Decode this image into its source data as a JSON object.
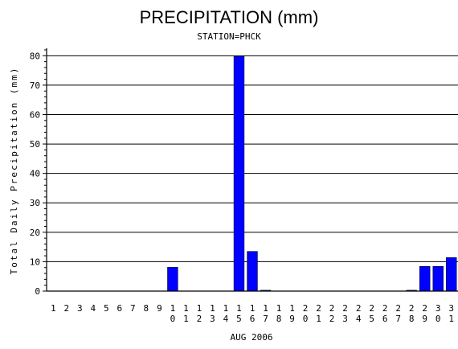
{
  "chart_data": {
    "type": "bar",
    "title": "PRECIPITATION (mm)",
    "subtitle": "STATION=PHCK",
    "xlabel": "AUG 2006",
    "ylabel": "Total Daily Precipitation (mm)",
    "ylim": [
      0,
      82
    ],
    "yticks": [
      0,
      10,
      20,
      30,
      40,
      50,
      60,
      70,
      80
    ],
    "grid": true,
    "bar_color": "#0000ff",
    "categories": [
      "1",
      "2",
      "3",
      "4",
      "5",
      "6",
      "7",
      "8",
      "9",
      "10",
      "11",
      "12",
      "13",
      "14",
      "15",
      "16",
      "17",
      "18",
      "19",
      "20",
      "21",
      "22",
      "23",
      "24",
      "25",
      "26",
      "27",
      "28",
      "29",
      "30",
      "31"
    ],
    "values": [
      0,
      0,
      0,
      0,
      0,
      0,
      0,
      0,
      0,
      8.1,
      0,
      0,
      0,
      0,
      79.8,
      13.5,
      0.3,
      0,
      0,
      0,
      0,
      0,
      0,
      0,
      0,
      0,
      0,
      0.3,
      8.4,
      8.4,
      11.4
    ]
  }
}
